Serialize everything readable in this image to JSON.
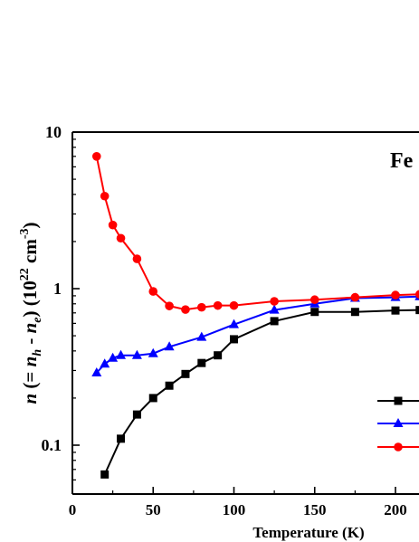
{
  "chart_data": {
    "type": "line",
    "title": "",
    "inset_label": "Fe",
    "xlabel": "Temperature (K)",
    "ylabel": {
      "lead": "n",
      "eq_open": " (= ",
      "n_h": "n",
      "sub_h": "h",
      "minus": " - ",
      "n_e": "n",
      "sub_e": "e",
      "close": ") (10",
      "exp": "22",
      "unit": " cm",
      "unit_exp": "-3",
      "end": ")"
    },
    "xlim": [
      0,
      215
    ],
    "ylim": [
      0.05,
      10
    ],
    "yscale": "log",
    "x_ticks": [
      0,
      50,
      100,
      150,
      200
    ],
    "x_tick_labels": [
      "0",
      "50",
      "100",
      "150",
      "200"
    ],
    "y_ticks": [
      0.1,
      1,
      10
    ],
    "y_tick_labels": [
      "0.1",
      "1",
      "10"
    ],
    "grid": false,
    "legend_position": "right",
    "series": [
      {
        "color": "#000000",
        "marker": "square",
        "x": [
          20,
          30,
          40,
          50,
          60,
          70,
          80,
          90,
          100,
          125,
          150,
          175,
          200,
          215
        ],
        "y": [
          0.065,
          0.11,
          0.157,
          0.2,
          0.24,
          0.285,
          0.335,
          0.375,
          0.475,
          0.62,
          0.71,
          0.71,
          0.725,
          0.73
        ]
      },
      {
        "color": "#0000ff",
        "marker": "triangle",
        "x": [
          15,
          20,
          25,
          30,
          40,
          50,
          60,
          80,
          100,
          125,
          150,
          175,
          200,
          215
        ],
        "y": [
          0.29,
          0.33,
          0.36,
          0.375,
          0.375,
          0.385,
          0.425,
          0.49,
          0.59,
          0.73,
          0.8,
          0.87,
          0.88,
          0.89
        ]
      },
      {
        "color": "#ff0000",
        "marker": "circle",
        "x": [
          15,
          20,
          25,
          30,
          40,
          50,
          60,
          70,
          80,
          90,
          100,
          125,
          150,
          175,
          200,
          215
        ],
        "y": [
          7.0,
          3.9,
          2.55,
          2.1,
          1.55,
          0.96,
          0.775,
          0.735,
          0.76,
          0.78,
          0.78,
          0.83,
          0.85,
          0.88,
          0.91,
          0.92
        ]
      }
    ]
  }
}
